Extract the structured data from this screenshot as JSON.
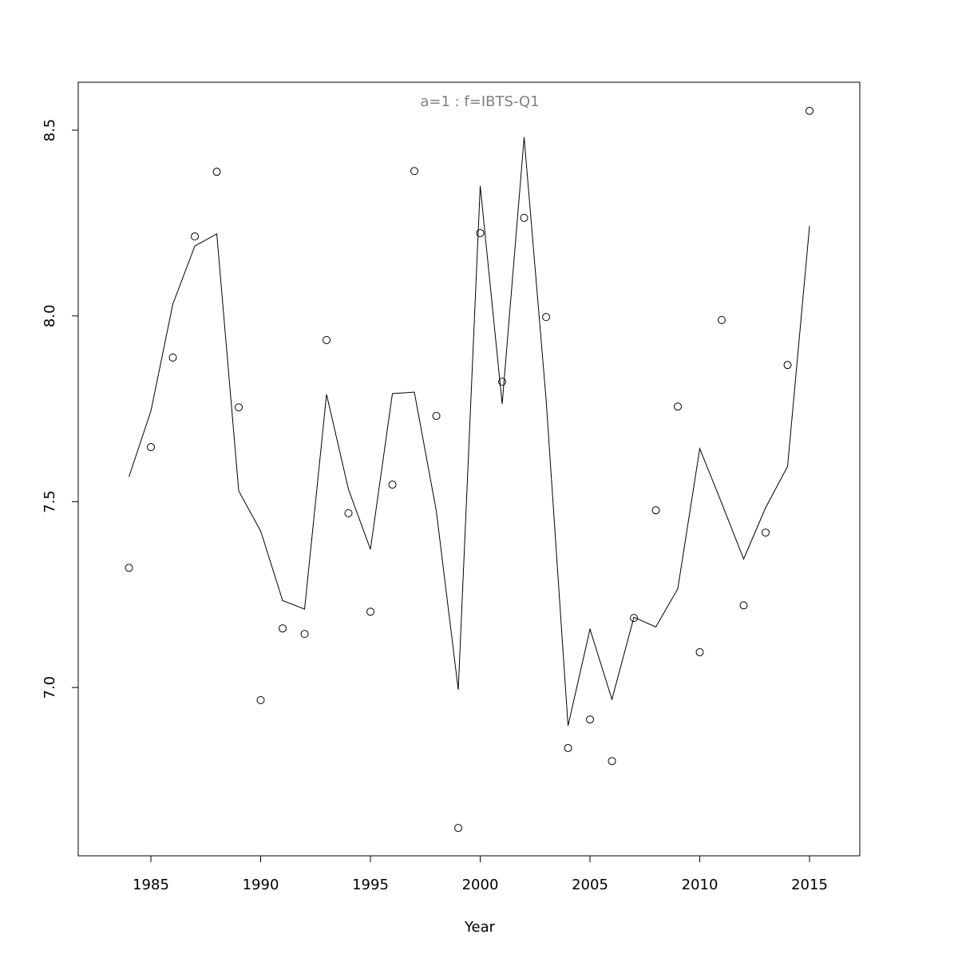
{
  "chart_data": {
    "type": "line",
    "title": "a=1  :  f=IBTS-Q1",
    "xlabel": "Year",
    "x": [
      1984,
      1985,
      1986,
      1987,
      1988,
      1989,
      1990,
      1991,
      1992,
      1993,
      1994,
      1995,
      1996,
      1997,
      1998,
      1999,
      2000,
      2001,
      2002,
      2003,
      2004,
      2005,
      2006,
      2007,
      2008,
      2009,
      2010,
      2011,
      2012,
      2013,
      2014,
      2015
    ],
    "series": [
      {
        "mode": "points",
        "color": "#000000",
        "values": [
          7.322,
          7.647,
          7.888,
          8.214,
          8.388,
          7.754,
          6.966,
          7.159,
          7.144,
          7.935,
          7.469,
          7.204,
          7.546,
          8.39,
          7.731,
          6.622,
          8.223,
          7.823,
          8.264,
          7.997,
          6.837,
          6.914,
          6.802,
          7.187,
          7.477,
          7.756,
          7.095,
          7.989,
          7.221,
          7.417,
          7.868,
          8.552
        ]
      },
      {
        "mode": "line",
        "color": "#000000",
        "values": [
          7.567,
          7.744,
          8.032,
          8.188,
          8.221,
          7.529,
          7.421,
          7.234,
          7.211,
          7.789,
          7.533,
          7.372,
          7.791,
          7.795,
          7.475,
          6.994,
          8.35,
          7.763,
          8.481,
          7.776,
          6.897,
          7.157,
          6.968,
          7.189,
          7.163,
          7.266,
          7.643,
          7.496,
          7.346,
          7.484,
          7.595,
          8.242
        ]
      }
    ],
    "xlim": [
      1981.69,
      2017.29
    ],
    "ylim": [
      6.547,
      8.629
    ],
    "xticks": [
      1985,
      1990,
      1995,
      2000,
      2005,
      2010,
      2015
    ],
    "yticks": [
      {
        "value": 7,
        "label": "7.0"
      },
      {
        "value": 7.5,
        "label": "7.5"
      },
      {
        "value": 8,
        "label": "8.0"
      },
      8.5
    ],
    "grid": false
  }
}
